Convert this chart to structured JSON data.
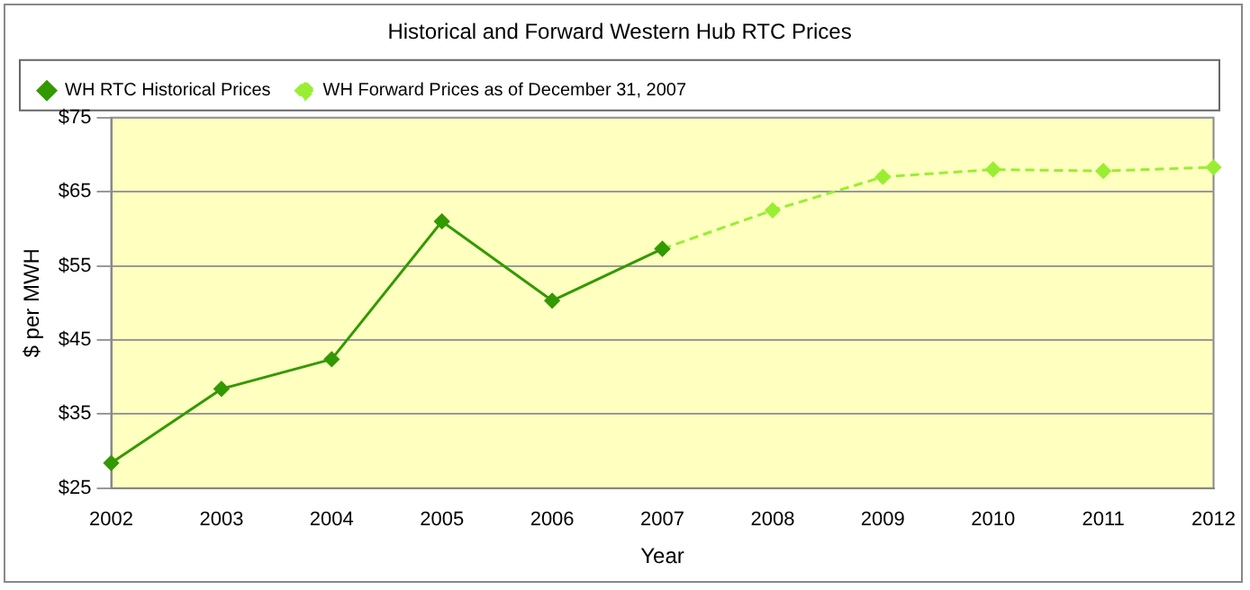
{
  "chart_data": {
    "type": "line",
    "title": "Historical and Forward Western Hub RTC Prices",
    "xlabel": "Year",
    "ylabel": "$ per MWH",
    "categories": [
      "2002",
      "2003",
      "2004",
      "2005",
      "2006",
      "2007",
      "2008",
      "2009",
      "2010",
      "2011",
      "2012"
    ],
    "series": [
      {
        "name": "WH RTC Historical Prices",
        "color": "#339900",
        "values": [
          28.4,
          38.4,
          42.4,
          61,
          50.3,
          57.3,
          null,
          null,
          null,
          null,
          null
        ],
        "line_style": "solid"
      },
      {
        "name": "WH Forward Prices as of December 31, 2007",
        "color": "#99ee33",
        "values": [
          null,
          null,
          null,
          null,
          null,
          57.3,
          62.5,
          67,
          68,
          67.8,
          68.3
        ],
        "line_style": "dashed"
      }
    ],
    "ylim": [
      25,
      75
    ],
    "yticks": [
      {
        "value": 25,
        "label": "$25"
      },
      {
        "value": 35,
        "label": "$35"
      },
      {
        "value": 45,
        "label": "$45"
      },
      {
        "value": 55,
        "label": "$55"
      },
      {
        "value": 65,
        "label": "$65"
      },
      {
        "value": 75,
        "label": "$75"
      }
    ],
    "grid": "y",
    "legend": "top",
    "marker": "diamond"
  }
}
